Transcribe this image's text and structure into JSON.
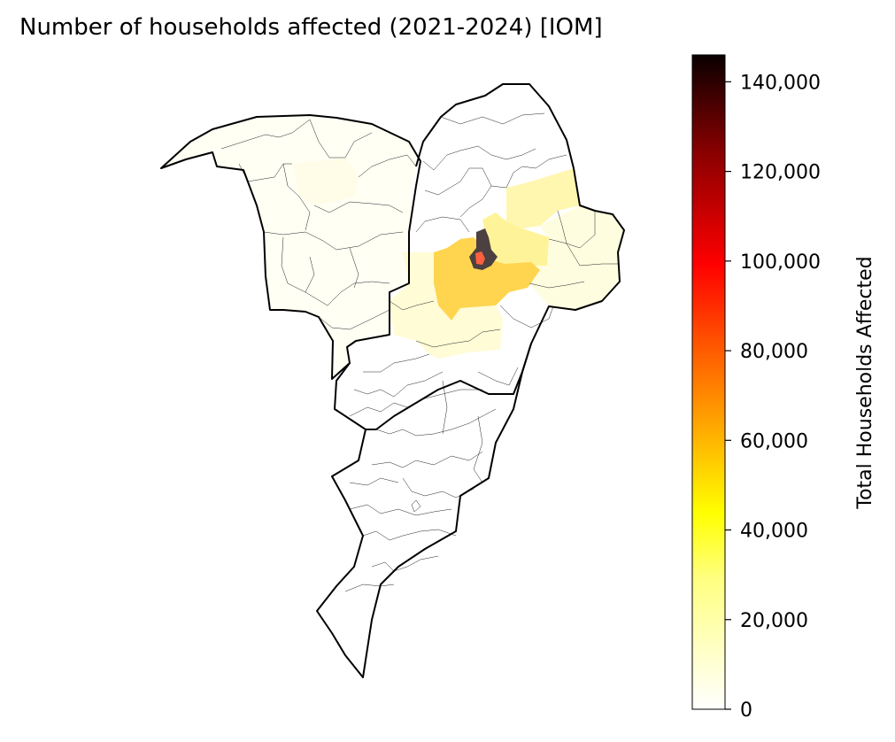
{
  "title": "Number of households affected (2021-2024) [IOM]",
  "colorbar": {
    "label": "Total Households Affected",
    "ticks": [
      {
        "label": "0",
        "value": 0
      },
      {
        "label": "20,000",
        "value": 20000
      },
      {
        "label": "40,000",
        "value": 40000
      },
      {
        "label": "60,000",
        "value": 60000
      },
      {
        "label": "80,000",
        "value": 80000
      },
      {
        "label": "100,000",
        "value": 100000
      },
      {
        "label": "120,000",
        "value": 120000
      },
      {
        "label": "140,000",
        "value": 140000
      }
    ],
    "min": 0,
    "max": 146000,
    "colormap": "hot_r"
  },
  "map": {
    "colors": {
      "none": "#ffffff",
      "very_low": "#fffff0",
      "low": "#fffcd8",
      "medium_low": "#fff3a0",
      "medium": "#ffd54f",
      "high": "#ff6040",
      "highest": "#4d4040"
    }
  }
}
